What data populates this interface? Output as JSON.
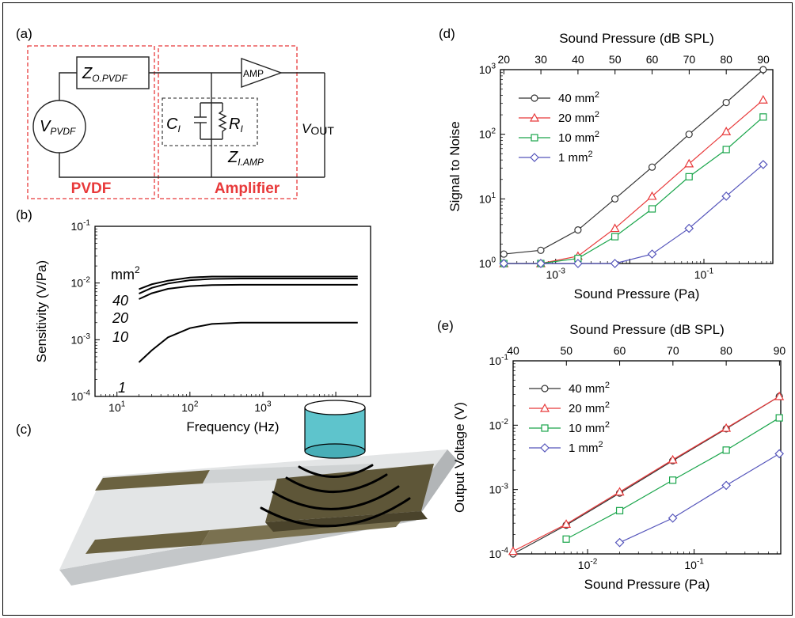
{
  "panels": {
    "a": {
      "label": "(a)",
      "z_opvdf_main": "Z",
      "z_opvdf_sub": "O.PVDF",
      "amp_label": "AMP",
      "v_pvdf_main": "V",
      "v_pvdf_sub": "PVDF",
      "c_main": "C",
      "c_sub": "I",
      "r_main": "R",
      "r_sub": "I",
      "z_iamp_main": "Z",
      "z_iamp_sub": "I.AMP",
      "vout_main": "V",
      "vout_sub": "OUT",
      "pvdf_block": "PVDF",
      "amp_block": "Amplifier",
      "block_color": "#e8393a"
    },
    "b": {
      "label": "(b)"
    },
    "c": {
      "label": "(c)",
      "cylinder_color": "#5ec4cc",
      "electrode_color": "#6b6240"
    },
    "d": {
      "label": "(d)"
    },
    "e": {
      "label": "(e)"
    }
  },
  "chart_data": [
    {
      "panel": "b",
      "type": "line",
      "xlabel": "Frequency (Hz)",
      "ylabel": "Sensitivity (V/Pa)",
      "xscale": "log",
      "yscale": "log",
      "xlim": [
        5,
        30000
      ],
      "ylim": [
        0.0001,
        0.1
      ],
      "x_ticks": [
        "10",
        "10",
        "10",
        "10"
      ],
      "x_tick_exps": [
        "1",
        "2",
        "3",
        "4"
      ],
      "y_ticks": [
        "10",
        "10",
        "10",
        "10"
      ],
      "y_tick_exps": [
        "-4",
        "-3",
        "-2",
        "-1"
      ],
      "legend_title": "mm",
      "legend_title_exp": "2",
      "curve_labels": [
        "40",
        "20",
        "10",
        "1"
      ],
      "x": [
        20,
        30,
        50,
        100,
        200,
        500,
        1000,
        20000
      ],
      "series": [
        {
          "name": "40",
          "values": [
            0.0078,
            0.0095,
            0.011,
            0.0125,
            0.013,
            0.013,
            0.013,
            0.013
          ]
        },
        {
          "name": "20",
          "values": [
            0.0065,
            0.0082,
            0.0098,
            0.0112,
            0.0118,
            0.012,
            0.012,
            0.012
          ]
        },
        {
          "name": "10",
          "values": [
            0.0052,
            0.0066,
            0.0079,
            0.0088,
            0.0092,
            0.0093,
            0.0093,
            0.0093
          ]
        },
        {
          "name": "1",
          "values": [
            0.0004,
            0.00065,
            0.0011,
            0.0016,
            0.0019,
            0.002,
            0.002,
            0.002
          ]
        }
      ]
    },
    {
      "panel": "d",
      "type": "line",
      "xlabel": "Sound Pressure (Pa)",
      "ylabel": "Signal to Noise",
      "top_xlabel": "Sound Pressure (dB SPL)",
      "xscale": "log",
      "yscale": "log",
      "xlim": [
        0.00018,
        0.85
      ],
      "ylim": [
        1,
        1000
      ],
      "top_ticks": [
        "20",
        "30",
        "40",
        "50",
        "60",
        "70",
        "80",
        "90"
      ],
      "x_ticks": [
        "10",
        "10"
      ],
      "x_tick_exps": [
        "-3",
        "-1"
      ],
      "y_ticks": [
        "10",
        "10",
        "10",
        "10"
      ],
      "y_tick_exps": [
        "0",
        "1",
        "2",
        "3"
      ],
      "legend_unit": "mm",
      "legend_unit_exp": "2",
      "x": [
        0.0002,
        0.00063,
        0.002,
        0.0063,
        0.02,
        0.063,
        0.2,
        0.63
      ],
      "series": [
        {
          "name": "40",
          "color": "#333333",
          "marker": "circle",
          "values": [
            1.4,
            1.6,
            3.3,
            10,
            31,
            100,
            310,
            1000
          ]
        },
        {
          "name": "20",
          "color": "#e8393a",
          "marker": "triangle",
          "values": [
            1.0,
            1.0,
            1.3,
            3.5,
            11,
            35,
            110,
            340
          ]
        },
        {
          "name": "10",
          "color": "#1aa54b",
          "marker": "square",
          "values": [
            1.0,
            1.0,
            1.2,
            2.6,
            7,
            22,
            58,
            185
          ]
        },
        {
          "name": "1",
          "color": "#5555bb",
          "marker": "diamond",
          "values": [
            1.0,
            1.0,
            1.0,
            1.0,
            1.4,
            3.5,
            11,
            34
          ]
        }
      ]
    },
    {
      "panel": "e",
      "type": "line",
      "xlabel": "Sound Pressure (Pa)",
      "ylabel": "Output Voltage (V)",
      "top_xlabel": "Sound Pressure (dB SPL)",
      "xscale": "log",
      "yscale": "log",
      "xlim": [
        0.002,
        0.65
      ],
      "ylim": [
        0.0001,
        0.1
      ],
      "top_ticks": [
        "40",
        "50",
        "60",
        "70",
        "80",
        "90"
      ],
      "x_ticks": [
        "10",
        "10"
      ],
      "x_tick_exps": [
        "-2",
        "-1"
      ],
      "y_ticks": [
        "10",
        "10",
        "10",
        "10"
      ],
      "y_tick_exps": [
        "-4",
        "-3",
        "-2",
        "-1"
      ],
      "legend_unit": "mm",
      "legend_unit_exp": "2",
      "x": [
        0.002,
        0.0063,
        0.02,
        0.063,
        0.2,
        0.63
      ],
      "series": [
        {
          "name": "40",
          "color": "#333333",
          "marker": "circle",
          "values": [
            0.0001,
            0.00028,
            0.00088,
            0.0028,
            0.0088,
            0.028
          ]
        },
        {
          "name": "20",
          "color": "#e8393a",
          "marker": "triangle",
          "values": [
            0.00011,
            0.00029,
            0.00092,
            0.0029,
            0.009,
            0.028
          ]
        },
        {
          "name": "10",
          "color": "#1aa54b",
          "marker": "square",
          "values": [
            null,
            0.00017,
            0.00047,
            0.0014,
            0.0041,
            0.013
          ]
        },
        {
          "name": "1",
          "color": "#5555bb",
          "marker": "diamond",
          "values": [
            null,
            null,
            0.00015,
            0.00036,
            0.00116,
            0.0036
          ]
        }
      ]
    }
  ]
}
